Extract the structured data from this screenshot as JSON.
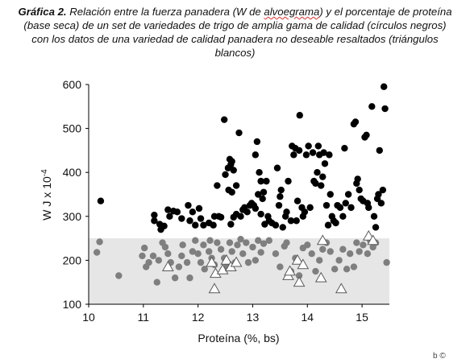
{
  "caption": {
    "line1_lead": "Gráfica 2.",
    "line1_rest_a": " Relación entre la fuerza panadera (W de ",
    "line1_underlined": "alvoegrama",
    "line1_rest_b": ") y el porcentaje de proteína",
    "line2": "(base seca) de un set de variedades de trigo de amplia gama de calidad (círculos negros)",
    "line3": "con los datos de una variedad de calidad panadera no deseable resaltados (triángulos",
    "line4": "blancos)"
  },
  "corner_mark": "b ©",
  "chart_data": {
    "type": "scatter",
    "title": "",
    "xlabel": "Proteína (%, bs)",
    "ylabel": "W J x 10",
    "ylabel_superscript": "-4",
    "xlim": [
      10,
      15.5
    ],
    "ylim": [
      100,
      600
    ],
    "xticks": [
      "10",
      "11",
      "12",
      "13",
      "14",
      "15"
    ],
    "yticks": [
      "100",
      "200",
      "300",
      "400",
      "500",
      "600"
    ],
    "grid": false,
    "shaded_band": {
      "y_from": 100,
      "y_to": 250,
      "color": "#e6e6e6"
    },
    "colors": {
      "black_points": "#000000",
      "gray_points": "#7f7f7f",
      "triangle_stroke": "#5a5a5a"
    },
    "series": [
      {
        "marker": "circle-black",
        "points": [
          [
            10.22,
            335
          ],
          [
            11.2,
            303
          ],
          [
            11.2,
            290
          ],
          [
            11.3,
            282
          ],
          [
            11.38,
            278
          ],
          [
            11.32,
            270
          ],
          [
            11.45,
            315
          ],
          [
            11.55,
            312
          ],
          [
            11.62,
            310
          ],
          [
            11.48,
            300
          ],
          [
            11.7,
            295
          ],
          [
            11.82,
            325
          ],
          [
            11.9,
            310
          ],
          [
            11.85,
            290
          ],
          [
            11.95,
            280
          ],
          [
            12.02,
            318
          ],
          [
            12.05,
            295
          ],
          [
            12.1,
            280
          ],
          [
            12.2,
            285
          ],
          [
            12.3,
            300
          ],
          [
            12.28,
            280
          ],
          [
            12.38,
            300
          ],
          [
            12.42,
            298
          ],
          [
            12.35,
            370
          ],
          [
            12.48,
            520
          ],
          [
            12.5,
            395
          ],
          [
            12.55,
            410
          ],
          [
            12.58,
            430
          ],
          [
            12.6,
            418
          ],
          [
            12.65,
            405
          ],
          [
            12.62,
            425
          ],
          [
            12.56,
            360
          ],
          [
            12.62,
            355
          ],
          [
            12.7,
            370
          ],
          [
            12.6,
            282
          ],
          [
            12.65,
            298
          ],
          [
            12.7,
            305
          ],
          [
            12.78,
            300
          ],
          [
            12.75,
            490
          ],
          [
            12.82,
            315
          ],
          [
            12.85,
            320
          ],
          [
            12.9,
            310
          ],
          [
            12.95,
            325
          ],
          [
            12.98,
            330
          ],
          [
            13.02,
            325
          ],
          [
            13.05,
            318
          ],
          [
            13.05,
            440
          ],
          [
            13.08,
            470
          ],
          [
            13.12,
            400
          ],
          [
            13.15,
            380
          ],
          [
            13.1,
            350
          ],
          [
            13.15,
            305
          ],
          [
            13.18,
            340
          ],
          [
            13.2,
            355
          ],
          [
            13.22,
            282
          ],
          [
            13.25,
            380
          ],
          [
            13.28,
            300
          ],
          [
            13.3,
            290
          ],
          [
            13.35,
            285
          ],
          [
            13.42,
            280
          ],
          [
            13.45,
            410
          ],
          [
            13.48,
            325
          ],
          [
            13.5,
            345
          ],
          [
            13.52,
            360
          ],
          [
            13.55,
            275
          ],
          [
            13.6,
            300
          ],
          [
            13.62,
            310
          ],
          [
            13.65,
            380
          ],
          [
            13.7,
            290
          ],
          [
            13.72,
            460
          ],
          [
            13.75,
            440
          ],
          [
            13.78,
            455
          ],
          [
            13.8,
            290
          ],
          [
            13.82,
            335
          ],
          [
            13.85,
            450
          ],
          [
            13.86,
            530
          ],
          [
            13.9,
            320
          ],
          [
            13.92,
            300
          ],
          [
            13.95,
            310
          ],
          [
            13.98,
            440
          ],
          [
            14.02,
            460
          ],
          [
            14.05,
            320
          ],
          [
            14.1,
            445
          ],
          [
            14.12,
            380
          ],
          [
            14.15,
            375
          ],
          [
            14.18,
            400
          ],
          [
            14.2,
            460
          ],
          [
            14.22,
            440
          ],
          [
            14.25,
            370
          ],
          [
            14.28,
            390
          ],
          [
            14.3,
            445
          ],
          [
            14.32,
            420
          ],
          [
            14.35,
            325
          ],
          [
            14.38,
            280
          ],
          [
            14.4,
            440
          ],
          [
            14.42,
            350
          ],
          [
            14.45,
            300
          ],
          [
            14.48,
            290
          ],
          [
            14.52,
            285
          ],
          [
            14.55,
            325
          ],
          [
            14.6,
            320
          ],
          [
            14.65,
            300
          ],
          [
            14.68,
            455
          ],
          [
            14.7,
            330
          ],
          [
            14.75,
            350
          ],
          [
            14.8,
            320
          ],
          [
            14.85,
            510
          ],
          [
            14.88,
            515
          ],
          [
            14.9,
            375
          ],
          [
            14.92,
            385
          ],
          [
            14.95,
            360
          ],
          [
            14.98,
            340
          ],
          [
            15.02,
            335
          ],
          [
            15.05,
            480
          ],
          [
            15.08,
            485
          ],
          [
            15.1,
            330
          ],
          [
            15.12,
            320
          ],
          [
            15.18,
            550
          ],
          [
            15.22,
            300
          ],
          [
            15.25,
            275
          ],
          [
            15.3,
            350
          ],
          [
            15.32,
            450
          ],
          [
            15.35,
            330
          ],
          [
            15.38,
            360
          ],
          [
            15.4,
            595
          ],
          [
            15.42,
            545
          ],
          [
            15.28,
            340
          ]
        ]
      },
      {
        "marker": "circle-gray",
        "points": [
          [
            10.15,
            218
          ],
          [
            10.2,
            242
          ],
          [
            10.55,
            165
          ],
          [
            10.98,
            210
          ],
          [
            11.02,
            228
          ],
          [
            11.05,
            185
          ],
          [
            11.1,
            195
          ],
          [
            11.18,
            210
          ],
          [
            11.25,
            150
          ],
          [
            11.28,
            200
          ],
          [
            11.35,
            240
          ],
          [
            11.4,
            230
          ],
          [
            11.45,
            215
          ],
          [
            11.5,
            195
          ],
          [
            11.58,
            160
          ],
          [
            11.65,
            185
          ],
          [
            11.7,
            210
          ],
          [
            11.72,
            235
          ],
          [
            11.8,
            195
          ],
          [
            11.85,
            160
          ],
          [
            11.9,
            220
          ],
          [
            11.95,
            245
          ],
          [
            12.0,
            215
          ],
          [
            12.05,
            195
          ],
          [
            12.1,
            235
          ],
          [
            12.12,
            180
          ],
          [
            12.2,
            220
          ],
          [
            12.22,
            245
          ],
          [
            12.25,
            205
          ],
          [
            12.3,
            190
          ],
          [
            12.35,
            240
          ],
          [
            12.42,
            225
          ],
          [
            12.48,
            205
          ],
          [
            12.52,
            185
          ],
          [
            12.58,
            240
          ],
          [
            12.62,
            220
          ],
          [
            12.68,
            195
          ],
          [
            12.72,
            235
          ],
          [
            12.78,
            248
          ],
          [
            12.82,
            215
          ],
          [
            12.88,
            240
          ],
          [
            12.92,
            195
          ],
          [
            13.0,
            230
          ],
          [
            13.05,
            200
          ],
          [
            13.1,
            245
          ],
          [
            13.15,
            218
          ],
          [
            13.2,
            238
          ],
          [
            13.3,
            245
          ],
          [
            13.42,
            215
          ],
          [
            13.5,
            185
          ],
          [
            13.58,
            232
          ],
          [
            13.62,
            240
          ],
          [
            13.7,
            175
          ],
          [
            13.78,
            205
          ],
          [
            13.85,
            165
          ],
          [
            13.92,
            228
          ],
          [
            14.0,
            235
          ],
          [
            14.08,
            215
          ],
          [
            14.15,
            175
          ],
          [
            14.22,
            200
          ],
          [
            14.28,
            225
          ],
          [
            14.35,
            240
          ],
          [
            14.42,
            220
          ],
          [
            14.5,
            180
          ],
          [
            14.58,
            200
          ],
          [
            14.65,
            225
          ],
          [
            14.72,
            180
          ],
          [
            14.78,
            215
          ],
          [
            14.85,
            185
          ],
          [
            14.9,
            240
          ],
          [
            14.95,
            220
          ],
          [
            15.02,
            235
          ],
          [
            15.1,
            215
          ],
          [
            15.15,
            245
          ],
          [
            15.2,
            230
          ],
          [
            15.25,
            240
          ],
          [
            15.45,
            195
          ]
        ]
      },
      {
        "marker": "triangle-white",
        "points": [
          [
            11.45,
            185
          ],
          [
            12.25,
            195
          ],
          [
            12.3,
            135
          ],
          [
            12.32,
            170
          ],
          [
            12.45,
            178
          ],
          [
            12.52,
            200
          ],
          [
            12.6,
            185
          ],
          [
            12.7,
            195
          ],
          [
            13.65,
            165
          ],
          [
            13.68,
            175
          ],
          [
            13.82,
            200
          ],
          [
            13.85,
            150
          ],
          [
            13.92,
            190
          ],
          [
            14.25,
            160
          ],
          [
            14.62,
            135
          ],
          [
            14.28,
            245
          ],
          [
            15.12,
            255
          ],
          [
            15.2,
            245
          ]
        ]
      }
    ]
  }
}
